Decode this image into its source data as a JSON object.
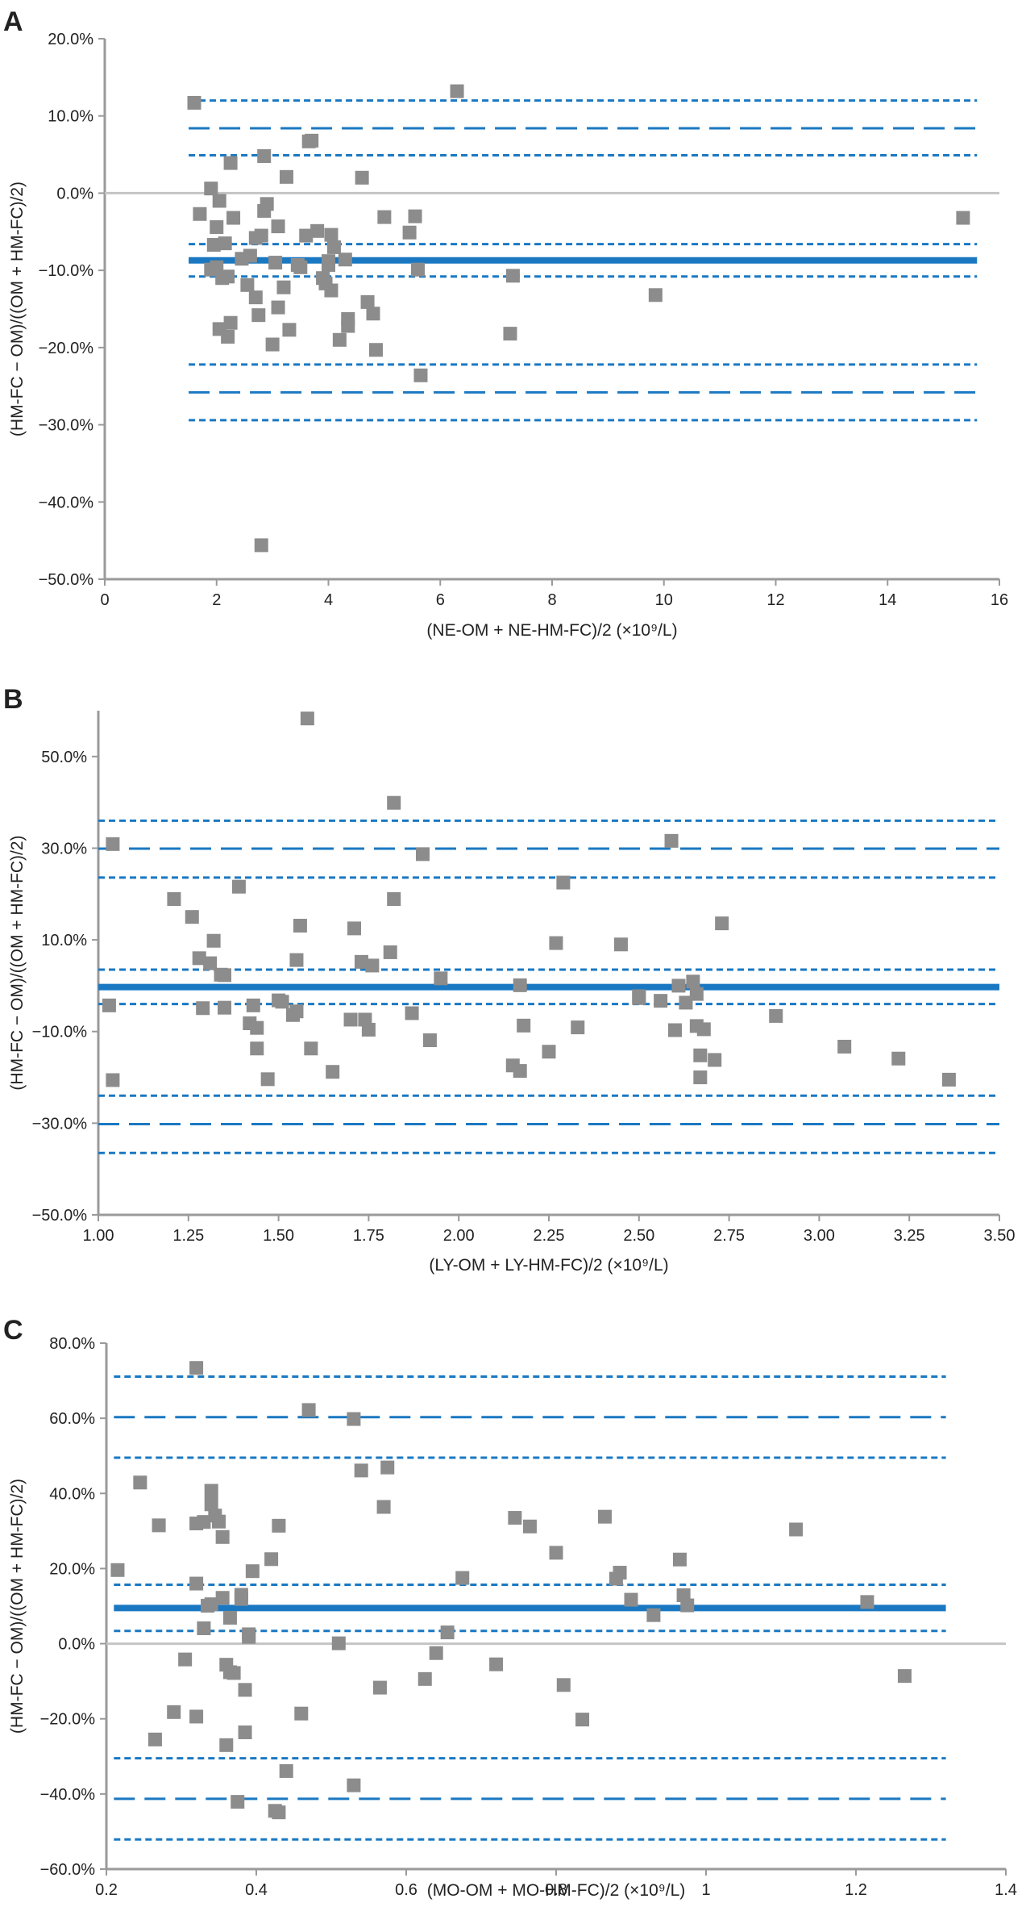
{
  "colors": {
    "axis": "#9a9a9a",
    "zero_line": "#c4c4c4",
    "mean_line": "#1a78c2",
    "loa_line": "#1a78c2",
    "point": "#8c8c8c"
  },
  "chart_data": [
    {
      "panel": "A",
      "type": "scatter",
      "title": "",
      "xlabel": "(NE-OM + NE-HM-FC)/2 (×10⁹/L)",
      "ylabel": "(HM-FC − OM)/((OM + HM-FC)/2)",
      "xlim": [
        0,
        16
      ],
      "ylim": [
        -50,
        20
      ],
      "x_ticks": [
        0,
        2,
        4,
        6,
        8,
        10,
        12,
        14,
        16
      ],
      "x_tick_labels": [
        "0",
        "2",
        "4",
        "6",
        "8",
        "10",
        "12",
        "14",
        "16"
      ],
      "y_ticks": [
        20,
        10,
        0,
        -10,
        -20,
        -30,
        -40,
        -50
      ],
      "y_tick_labels": [
        "20.0%",
        "10.0%",
        "0.0%",
        "−10.0%",
        "−20.0%",
        "−30.0%",
        "−40.0%",
        "−50.0%"
      ],
      "zero_line": true,
      "line_x_range": [
        1.5,
        15.6
      ],
      "mean": -8.7,
      "mean_ci": [
        -10.8,
        -6.6
      ],
      "upper_loa": 8.4,
      "upper_loa_ci": [
        4.9,
        12.0
      ],
      "lower_loa": -25.8,
      "lower_loa_ci": [
        -29.4,
        -22.2
      ],
      "points": [
        [
          1.6,
          11.7
        ],
        [
          1.7,
          -2.7
        ],
        [
          1.9,
          0.6
        ],
        [
          1.95,
          -6.7
        ],
        [
          1.9,
          -9.9
        ],
        [
          2.0,
          -4.4
        ],
        [
          2.0,
          -9.6
        ],
        [
          2.05,
          -17.6
        ],
        [
          2.1,
          -11.0
        ],
        [
          2.05,
          -1.0
        ],
        [
          2.15,
          -6.5
        ],
        [
          2.2,
          -18.6
        ],
        [
          2.2,
          -10.8
        ],
        [
          2.25,
          3.9
        ],
        [
          2.25,
          -16.8
        ],
        [
          2.3,
          -3.2
        ],
        [
          2.45,
          -8.5
        ],
        [
          2.55,
          -11.9
        ],
        [
          2.6,
          -8.1
        ],
        [
          2.7,
          -13.5
        ],
        [
          2.8,
          -5.5
        ],
        [
          2.75,
          -15.8
        ],
        [
          2.85,
          4.8
        ],
        [
          2.85,
          -2.3
        ],
        [
          2.9,
          -1.4
        ],
        [
          2.7,
          -5.8
        ],
        [
          2.8,
          -45.6
        ],
        [
          3.0,
          -19.6
        ],
        [
          3.05,
          -9.0
        ],
        [
          3.1,
          -14.8
        ],
        [
          3.1,
          -4.3
        ],
        [
          3.2,
          -12.2
        ],
        [
          3.25,
          2.1
        ],
        [
          3.3,
          -17.7
        ],
        [
          3.45,
          -9.3
        ],
        [
          3.5,
          -9.6
        ],
        [
          3.65,
          6.7
        ],
        [
          3.7,
          6.8
        ],
        [
          3.6,
          -5.5
        ],
        [
          3.8,
          -4.9
        ],
        [
          3.9,
          -11.0
        ],
        [
          3.95,
          -11.7
        ],
        [
          4.0,
          -9.3
        ],
        [
          4.05,
          -12.6
        ],
        [
          4.0,
          -8.8
        ],
        [
          4.05,
          -5.4
        ],
        [
          4.1,
          -7.0
        ],
        [
          4.2,
          -19.0
        ],
        [
          4.3,
          -8.6
        ],
        [
          4.35,
          -16.3
        ],
        [
          4.35,
          -17.2
        ],
        [
          4.6,
          2.0
        ],
        [
          4.7,
          -14.1
        ],
        [
          4.8,
          -15.6
        ],
        [
          4.85,
          -20.3
        ],
        [
          5.0,
          -3.1
        ],
        [
          5.45,
          -5.1
        ],
        [
          5.55,
          -3.0
        ],
        [
          5.6,
          -9.9
        ],
        [
          5.65,
          -23.6
        ],
        [
          6.3,
          13.2
        ],
        [
          7.3,
          -10.7
        ],
        [
          7.25,
          -18.2
        ],
        [
          9.85,
          -13.2
        ],
        [
          15.35,
          -3.2
        ]
      ]
    },
    {
      "panel": "B",
      "type": "scatter",
      "title": "",
      "xlabel": "(LY-OM + LY-HM-FC)/2 (×10⁹/L)",
      "ylabel": "(HM-FC − OM)/((OM + HM-FC)/2)",
      "xlim": [
        1.0,
        3.5
      ],
      "ylim": [
        -50,
        60
      ],
      "x_ticks": [
        1.0,
        1.25,
        1.5,
        1.75,
        2.0,
        2.25,
        2.5,
        2.75,
        3.0,
        3.25,
        3.5
      ],
      "x_tick_labels": [
        "1.00",
        "1.25",
        "1.50",
        "1.75",
        "2.00",
        "2.25",
        "2.50",
        "2.75",
        "3.00",
        "3.25",
        "3.50"
      ],
      "y_ticks": [
        50,
        30,
        10,
        -10,
        -30,
        -50
      ],
      "y_tick_labels": [
        "50.0%",
        "30.0%",
        "10.0%",
        "−10.0%",
        "−30.0%",
        "−50.0%"
      ],
      "zero_line": false,
      "line_x_range": [
        1.0,
        3.5
      ],
      "mean": -0.3,
      "mean_ci": [
        -4.0,
        3.5
      ],
      "upper_loa": 29.9,
      "upper_loa_ci": [
        23.6,
        36.0
      ],
      "lower_loa": -30.2,
      "lower_loa_ci": [
        -36.5,
        -24.0
      ],
      "points": [
        [
          1.03,
          -4.3
        ],
        [
          1.04,
          30.9
        ],
        [
          1.04,
          -20.6
        ],
        [
          1.21,
          18.9
        ],
        [
          1.26,
          15.0
        ],
        [
          1.28,
          6.0
        ],
        [
          1.29,
          -4.9
        ],
        [
          1.31,
          4.9
        ],
        [
          1.32,
          9.8
        ],
        [
          1.34,
          2.4
        ],
        [
          1.35,
          -4.8
        ],
        [
          1.35,
          2.3
        ],
        [
          1.39,
          21.6
        ],
        [
          1.42,
          -8.2
        ],
        [
          1.43,
          -4.3
        ],
        [
          1.44,
          -9.2
        ],
        [
          1.44,
          -13.7
        ],
        [
          1.47,
          -20.4
        ],
        [
          1.5,
          -3.2
        ],
        [
          1.51,
          -3.5
        ],
        [
          1.54,
          -6.4
        ],
        [
          1.55,
          -5.6
        ],
        [
          1.55,
          5.6
        ],
        [
          1.56,
          13.1
        ],
        [
          1.58,
          58.3
        ],
        [
          1.59,
          -13.7
        ],
        [
          1.65,
          -18.8
        ],
        [
          1.7,
          -7.4
        ],
        [
          1.71,
          12.5
        ],
        [
          1.73,
          5.2
        ],
        [
          1.74,
          -7.4
        ],
        [
          1.75,
          -9.6
        ],
        [
          1.76,
          4.4
        ],
        [
          1.81,
          7.3
        ],
        [
          1.82,
          39.9
        ],
        [
          1.82,
          18.9
        ],
        [
          1.87,
          -6.0
        ],
        [
          1.9,
          28.7
        ],
        [
          1.92,
          -11.9
        ],
        [
          1.95,
          1.6
        ],
        [
          2.15,
          -17.4
        ],
        [
          2.17,
          -18.6
        ],
        [
          2.17,
          0.1
        ],
        [
          2.18,
          -8.7
        ],
        [
          2.25,
          -14.4
        ],
        [
          2.27,
          9.3
        ],
        [
          2.29,
          22.5
        ],
        [
          2.33,
          -9.1
        ],
        [
          2.45,
          9.0
        ],
        [
          2.5,
          -2.3
        ],
        [
          2.5,
          -2.7
        ],
        [
          2.56,
          -3.3
        ],
        [
          2.59,
          31.6
        ],
        [
          2.6,
          -9.7
        ],
        [
          2.61,
          0.0
        ],
        [
          2.63,
          -3.7
        ],
        [
          2.65,
          0.9
        ],
        [
          2.66,
          -1.8
        ],
        [
          2.66,
          -8.8
        ],
        [
          2.67,
          -15.2
        ],
        [
          2.67,
          -20.0
        ],
        [
          2.68,
          -9.5
        ],
        [
          2.71,
          -16.2
        ],
        [
          2.73,
          13.6
        ],
        [
          2.88,
          -6.6
        ],
        [
          3.07,
          -13.3
        ],
        [
          3.22,
          -15.9
        ],
        [
          3.36,
          -20.5
        ]
      ]
    },
    {
      "panel": "C",
      "type": "scatter",
      "title": "",
      "xlabel": "(MO-OM + MO-HM-FC)/2 (×10⁹/L)",
      "ylabel": "(HM-FC − OM)/((OM + HM-FC)/2)",
      "xlim": [
        0.2,
        1.4
      ],
      "ylim": [
        -60,
        80
      ],
      "x_ticks": [
        0.2,
        0.4,
        0.6,
        0.8,
        1.0,
        1.2,
        1.4
      ],
      "x_tick_labels": [
        "0.2",
        "0.4",
        "0.6",
        "0.8",
        "1",
        "1.2",
        "1.4"
      ],
      "y_ticks": [
        80,
        60,
        40,
        20,
        0,
        -20,
        -40,
        -60
      ],
      "y_tick_labels": [
        "80.0%",
        "60.0%",
        "40.0%",
        "20.0%",
        "0.0%",
        "−20.0%",
        "−40.0%",
        "−60.0%"
      ],
      "zero_line": true,
      "line_x_range": [
        0.21,
        1.32
      ],
      "mean": 9.5,
      "mean_ci": [
        3.4,
        15.7
      ],
      "upper_loa": 60.3,
      "upper_loa_ci": [
        49.5,
        71.1
      ],
      "lower_loa": -41.3,
      "lower_loa_ci": [
        -52.1,
        -30.5
      ],
      "points": [
        [
          0.215,
          19.6
        ],
        [
          0.245,
          42.9
        ],
        [
          0.265,
          -25.5
        ],
        [
          0.27,
          31.5
        ],
        [
          0.29,
          -18.2
        ],
        [
          0.305,
          -4.2
        ],
        [
          0.32,
          73.4
        ],
        [
          0.32,
          32.0
        ],
        [
          0.32,
          -19.4
        ],
        [
          0.32,
          16.0
        ],
        [
          0.33,
          4.1
        ],
        [
          0.33,
          32.4
        ],
        [
          0.335,
          10.1
        ],
        [
          0.34,
          40.7
        ],
        [
          0.34,
          10.5
        ],
        [
          0.34,
          37.1
        ],
        [
          0.345,
          34.1
        ],
        [
          0.35,
          32.5
        ],
        [
          0.355,
          28.4
        ],
        [
          0.355,
          12.2
        ],
        [
          0.36,
          -27.0
        ],
        [
          0.36,
          -5.6
        ],
        [
          0.365,
          6.9
        ],
        [
          0.365,
          -7.6
        ],
        [
          0.37,
          -7.8
        ],
        [
          0.375,
          -42.1
        ],
        [
          0.38,
          11.9
        ],
        [
          0.38,
          13.0
        ],
        [
          0.385,
          -12.3
        ],
        [
          0.385,
          -23.6
        ],
        [
          0.39,
          2.5
        ],
        [
          0.39,
          1.8
        ],
        [
          0.395,
          19.3
        ],
        [
          0.42,
          22.5
        ],
        [
          0.425,
          -44.5
        ],
        [
          0.43,
          -44.9
        ],
        [
          0.43,
          31.4
        ],
        [
          0.44,
          -33.9
        ],
        [
          0.46,
          -18.6
        ],
        [
          0.47,
          62.2
        ],
        [
          0.51,
          0.1
        ],
        [
          0.53,
          59.8
        ],
        [
          0.53,
          -37.7
        ],
        [
          0.54,
          46.1
        ],
        [
          0.565,
          -11.7
        ],
        [
          0.57,
          36.4
        ],
        [
          0.575,
          46.9
        ],
        [
          0.625,
          -9.4
        ],
        [
          0.64,
          -2.5
        ],
        [
          0.655,
          3.0
        ],
        [
          0.675,
          17.5
        ],
        [
          0.72,
          -5.5
        ],
        [
          0.745,
          33.5
        ],
        [
          0.765,
          31.2
        ],
        [
          0.8,
          24.2
        ],
        [
          0.81,
          -11.0
        ],
        [
          0.835,
          -20.2
        ],
        [
          0.865,
          33.8
        ],
        [
          0.88,
          17.3
        ],
        [
          0.885,
          18.9
        ],
        [
          0.9,
          11.7
        ],
        [
          0.93,
          7.6
        ],
        [
          0.965,
          22.4
        ],
        [
          0.97,
          12.9
        ],
        [
          0.975,
          10.2
        ],
        [
          1.12,
          30.4
        ],
        [
          1.215,
          11.1
        ],
        [
          1.265,
          -8.6
        ]
      ]
    }
  ]
}
